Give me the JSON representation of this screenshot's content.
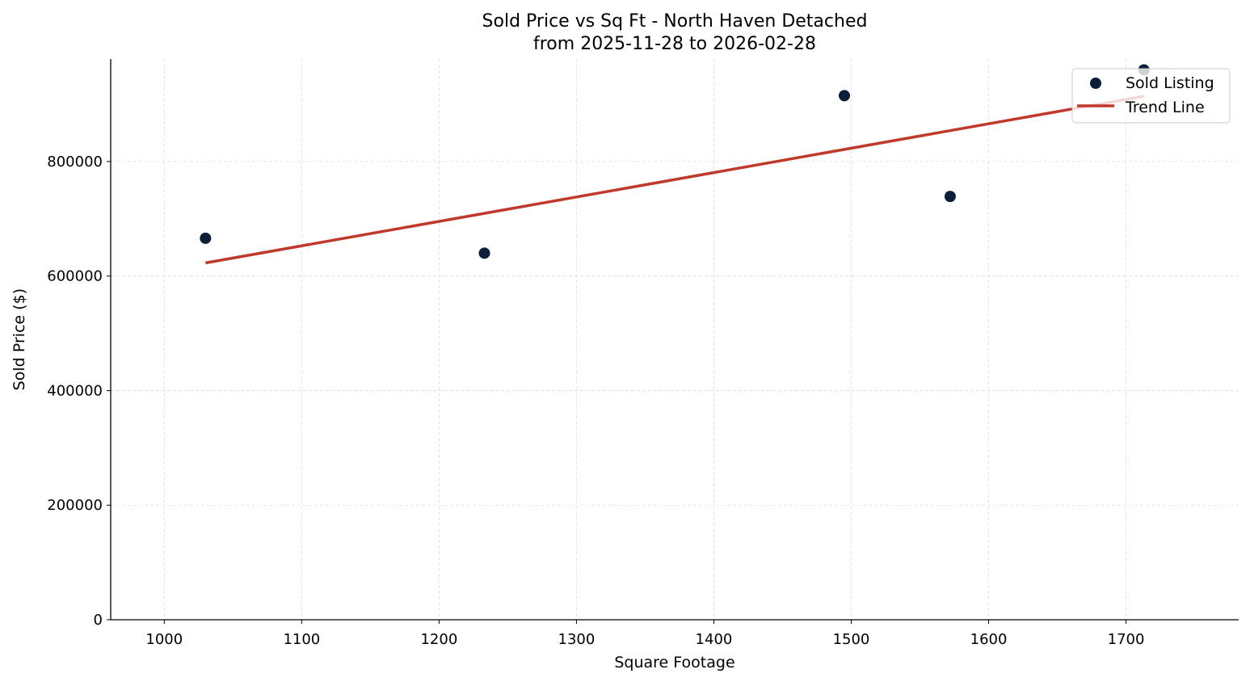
{
  "chart_data": {
    "type": "scatter",
    "title": "Sold Price vs Sq Ft - North Haven Detached",
    "subtitle": "from 2025-11-28 to 2026-02-28",
    "xlabel": "Square Footage",
    "ylabel": "Sold Price ($)",
    "xlim": [
      961,
      1782
    ],
    "ylim": [
      0,
      979000
    ],
    "xticks": [
      1000,
      1100,
      1200,
      1300,
      1400,
      1500,
      1600,
      1700
    ],
    "yticks": [
      0,
      200000,
      400000,
      600000,
      800000
    ],
    "grid": true,
    "legend_position": "top-right",
    "series": [
      {
        "name": "Sold Listing",
        "type": "scatter",
        "color": "#0b1f3a",
        "x": [
          1030,
          1233,
          1495,
          1572,
          1713
        ],
        "y": [
          666000,
          640000,
          915000,
          739000,
          960000
        ]
      },
      {
        "name": "Trend Line",
        "type": "line",
        "color": "#c0392b",
        "x": [
          1030,
          1713
        ],
        "y": [
          623000,
          914000
        ]
      }
    ]
  }
}
